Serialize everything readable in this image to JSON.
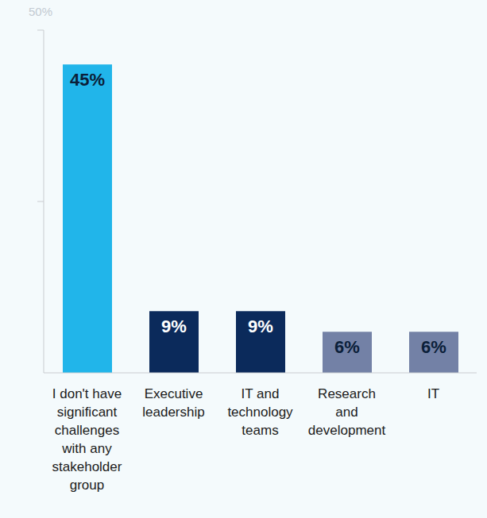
{
  "chart_data": {
    "type": "bar",
    "categories": [
      "I don't have significant challenges with any stakeholder group",
      "Executive leadership",
      "IT and technology teams",
      "Research and development",
      "IT"
    ],
    "values": [
      45,
      9,
      9,
      6,
      6
    ],
    "value_labels": [
      "45%",
      "9%",
      "9%",
      "6%",
      "6%"
    ],
    "colors": [
      "#21b5ea",
      "#0b2a5b",
      "#0b2a5b",
      "#7381a6",
      "#7381a6"
    ],
    "ylim": [
      0,
      50
    ],
    "yticks": [
      {
        "value": 25,
        "label": null
      },
      {
        "value": 50,
        "label": "50%"
      }
    ],
    "data_labels": true,
    "grid": false
  }
}
